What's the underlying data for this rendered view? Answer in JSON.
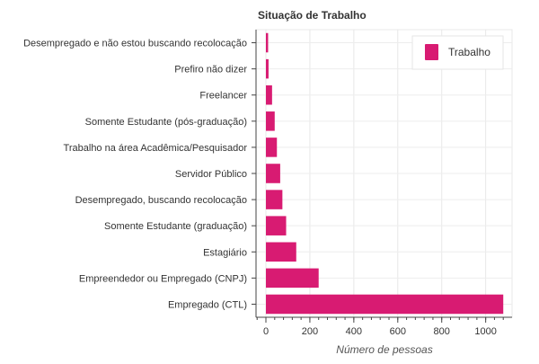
{
  "chart_data": {
    "type": "bar",
    "orientation": "horizontal",
    "title": "Situação de Trabalho",
    "xlabel": "Número de pessoas",
    "ylabel": "",
    "xlim": [
      -45,
      1120
    ],
    "xticks": [
      0,
      200,
      400,
      600,
      800,
      1000
    ],
    "xtick_labels": [
      "0",
      "200",
      "400",
      "600",
      "800",
      "1000"
    ],
    "grid": true,
    "legend_position": "top-right",
    "categories": [
      "Desempregado e não estou buscando recolocação",
      "Prefiro não dizer",
      "Freelancer",
      "Somente Estudante (pós-graduação)",
      "Trabalho na área Acadêmica/Pesquisador",
      "Servidor Público",
      "Desempregado, buscando recolocação",
      "Somente Estudante (graduação)",
      "Estagiário",
      "Empreendedor ou Empregado (CNPJ)",
      "Empregado (CTL)"
    ],
    "series": [
      {
        "name": "Trabalho",
        "color": "#d81b72",
        "values": [
          10,
          12,
          28,
          40,
          50,
          65,
          75,
          92,
          138,
          240,
          1080
        ]
      }
    ]
  }
}
